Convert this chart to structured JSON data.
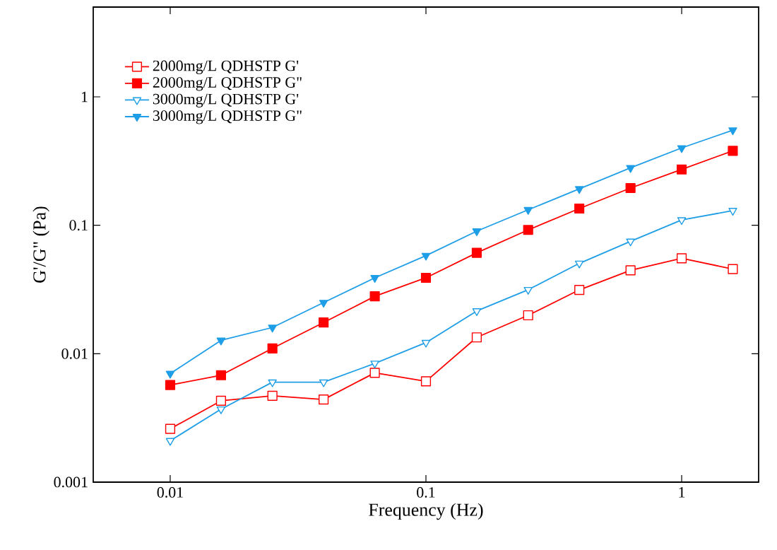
{
  "chart_data": {
    "type": "line",
    "xlabel": "Frequency (Hz)",
    "ylabel": "G'/G\" (Pa)",
    "log": "xy",
    "x": [
      0.01,
      0.0158,
      0.0251,
      0.0398,
      0.0631,
      0.1,
      0.158,
      0.251,
      0.398,
      0.631,
      1,
      1.585
    ],
    "series": [
      {
        "name": "2000mg/L QDHSTP G'",
        "color": "#ff0000",
        "marker": "square",
        "values": [
          0.0026,
          0.0043,
          0.0047,
          0.0044,
          0.0071,
          0.0061,
          0.0134,
          0.0199,
          0.0314,
          0.0446,
          0.0553,
          0.0456
        ]
      },
      {
        "name": "2000mg/L QDHSTP G\"",
        "color": "#ff0000",
        "marker": "square",
        "values": [
          0.0057,
          0.0068,
          0.011,
          0.0175,
          0.028,
          0.039,
          0.061,
          0.092,
          0.135,
          0.195,
          0.272,
          0.38
        ]
      },
      {
        "name": "3000mg/L QDHSTP G'",
        "color": "#1e9ee6",
        "marker": "triangle",
        "values": [
          0.0021,
          0.0037,
          0.006,
          0.006,
          0.0084,
          0.0122,
          0.0215,
          0.0315,
          0.0505,
          0.075,
          0.11,
          0.13
        ]
      },
      {
        "name": "3000mg/L QDHSTP G\"",
        "color": "#1e9ee6",
        "marker": "triangle",
        "values": [
          0.007,
          0.0127,
          0.016,
          0.025,
          0.039,
          0.058,
          0.09,
          0.132,
          0.192,
          0.28,
          0.4,
          0.55
        ]
      }
    ],
    "xlim": [
      0.005,
      2
    ],
    "ylim": [
      0.001,
      5
    ],
    "xticks": [
      0.01,
      0.1,
      1
    ],
    "yticks": [
      0.001,
      0.01,
      0.1,
      1
    ],
    "grid": false,
    "legend": "top left",
    "line_style": "solid"
  }
}
